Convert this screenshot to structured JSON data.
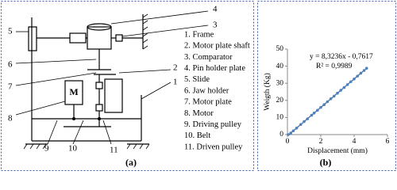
{
  "diagram": {
    "legend": [
      "1. Frame",
      "2. Motor plate shaft",
      "3. Comparator",
      "4. Pin holder plate",
      "5. Slide",
      "6. Jaw holder",
      "7. Motor plate",
      "8. Motor",
      "9. Driving pulley",
      "10. Belt",
      "11. Driven pulley"
    ],
    "callouts": [
      "1",
      "2",
      "3",
      "4",
      "5",
      "6",
      "7",
      "8",
      "9",
      "10",
      "11"
    ],
    "motor_label": "M",
    "caption": "(a)"
  },
  "chart_data": {
    "type": "scatter",
    "caption": "(b)",
    "x_label": "Displacement (mm)",
    "y_label": "Weigth (Kg)",
    "equation": "y = 8,3236x - 0,7617",
    "r_squared": "R² = 0,9989",
    "x": [
      0.05,
      0.2,
      0.35,
      0.55,
      0.8,
      1.0,
      1.2,
      1.45,
      1.6,
      1.8,
      2.0,
      2.2,
      2.4,
      2.6,
      2.8,
      3.0,
      3.2,
      3.4,
      3.6,
      3.8,
      4.0,
      4.2,
      4.4,
      4.6,
      4.75
    ],
    "values": [
      0,
      0.9,
      2.2,
      3.8,
      5.9,
      7.6,
      9.2,
      11.3,
      12.6,
      14.2,
      15.9,
      17.5,
      19.2,
      20.9,
      22.5,
      24.2,
      25.9,
      27.5,
      29.2,
      30.9,
      32.5,
      34.2,
      35.9,
      37.5,
      38.8
    ],
    "color": "#4f81bd",
    "trendline": {
      "x": [
        0.09,
        4.8
      ],
      "values": [
        0,
        39.2
      ],
      "color": "#2f5f9f"
    },
    "xlim": [
      0,
      6
    ],
    "xticks": [
      0,
      2,
      4,
      6
    ],
    "ylim": [
      0,
      50
    ],
    "yticks": [
      0,
      10,
      20,
      30,
      40,
      50
    ]
  }
}
